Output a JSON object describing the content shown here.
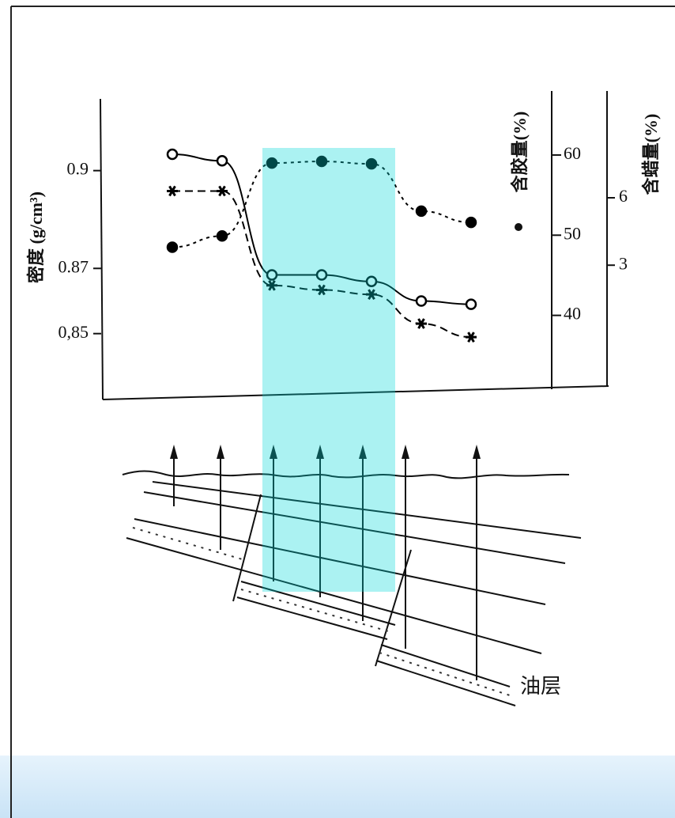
{
  "chart_data": {
    "type": "line",
    "y_label": "密度 (g/cm³)",
    "y2_label": "含胶量(%)",
    "y3_label": "含蜡量(%)",
    "categories": [
      null,
      null,
      null,
      null,
      null,
      null,
      null
    ],
    "ylim": [
      0.831,
      0.922
    ],
    "yticks": [
      {
        "value": 0.85,
        "label": "0,85"
      },
      0.87,
      0.9
    ],
    "y2lim": [
      30,
      67
    ],
    "y2ticks": [
      40,
      50,
      60
    ],
    "y3lim": [
      -2.8,
      10.4
    ],
    "y3ticks": [
      3,
      6
    ],
    "series": [
      {
        "axis": "y",
        "color": "#000000",
        "marker": "circle-open",
        "dash": "solid",
        "values": [
          0.905,
          0.903,
          0.868,
          0.868,
          0.866,
          0.86,
          0.859
        ]
      },
      {
        "axis": "y2",
        "color": "#000000",
        "marker": "circle",
        "dash": "dotted",
        "values": [
          48.5,
          49.9,
          59,
          59.2,
          58.9,
          53,
          51.6
        ]
      },
      {
        "axis": "y3",
        "color": "#000000",
        "marker": "asterisk",
        "dash": "dashed",
        "values": [
          6.3,
          6.3,
          2.1,
          1.9,
          1.7,
          0.4,
          -0.2
        ]
      }
    ],
    "annotations": [
      "油层"
    ]
  }
}
